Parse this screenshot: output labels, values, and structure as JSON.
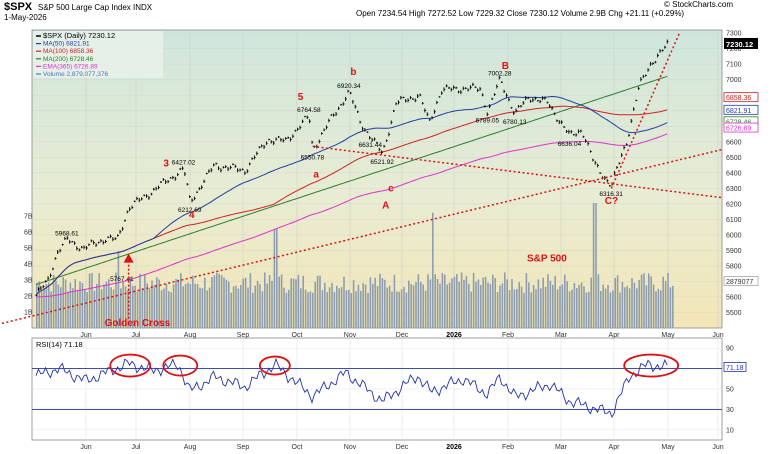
{
  "header": {
    "symbol": "$SPX",
    "name": "S&P 500 Large Cap Index INDX",
    "date": "1-May-2026",
    "ohlc": "Open 7234.54  High 7272.52  Low 7229.32  Close 7230.12  Volume 2.9B  Chg +21.11 (+0.29%)",
    "brand": "© StockCharts.com"
  },
  "legend": [
    {
      "text": "$SPX (Daily) 7230.12",
      "color": "#000000"
    },
    {
      "text": "MA(50) 6821.91",
      "color": "#1f3f9f"
    },
    {
      "text": "MA(100) 6858.36",
      "color": "#cc2222"
    },
    {
      "text": "MA(200) 6728.46",
      "color": "#2e7d2e"
    },
    {
      "text": "EMA(365) 6726.89",
      "color": "#dd33cc"
    },
    {
      "text": "Volume 2,879,077,376",
      "color": "#4477bb"
    }
  ],
  "rsi_label": "RSI(14) 71.18",
  "colors": {
    "up": "#000000",
    "ma50": "#1f3f9f",
    "ma100": "#cc2222",
    "ma200": "#2e7d2e",
    "ema365": "#dd33cc",
    "volume": "#8f9eae",
    "annotation": "#dd1111",
    "rsi": "#2233aa"
  },
  "chart_data": [
    {
      "type": "line",
      "x_ticks": [
        "Jun",
        "Jul",
        "Aug",
        "Sep",
        "Oct",
        "Nov",
        "Dec",
        "2026",
        "Feb",
        "Mar",
        "Apr",
        "May",
        "Jun"
      ],
      "y_ticks": [
        5500,
        5600,
        5700,
        5800,
        5900,
        6000,
        6100,
        6200,
        6300,
        6400,
        6500,
        6600,
        6700,
        6800,
        6900,
        7000,
        7100,
        7200,
        7300
      ],
      "ylim": [
        5400,
        7320
      ],
      "price_anchors": [
        {
          "x": "2025-05-01",
          "y": 5610
        },
        {
          "x": "2025-05-08",
          "y": 5700
        },
        {
          "x": "2025-05-14",
          "y": 5890
        },
        {
          "x": "2025-05-20",
          "y": 5968.61
        },
        {
          "x": "2025-05-30",
          "y": 5911
        },
        {
          "x": "2025-06-05",
          "y": 5939
        },
        {
          "x": "2025-06-13",
          "y": 5977
        },
        {
          "x": "2025-06-20",
          "y": 5967
        },
        {
          "x": "2025-06-27",
          "y": 6173
        },
        {
          "x": "2025-07-10",
          "y": 6280
        },
        {
          "x": "2025-07-28",
          "y": 6427.02
        },
        {
          "x": "2025-08-01",
          "y": 6212.69
        },
        {
          "x": "2025-08-15",
          "y": 6449
        },
        {
          "x": "2025-09-02",
          "y": 6415
        },
        {
          "x": "2025-09-15",
          "y": 6615
        },
        {
          "x": "2025-09-25",
          "y": 6604
        },
        {
          "x": "2025-10-08",
          "y": 6764.58
        },
        {
          "x": "2025-10-10",
          "y": 6550.78
        },
        {
          "x": "2025-10-20",
          "y": 6735
        },
        {
          "x": "2025-10-29",
          "y": 6890
        },
        {
          "x": "2025-10-31",
          "y": 6920.34
        },
        {
          "x": "2025-11-07",
          "y": 6728
        },
        {
          "x": "2025-11-13",
          "y": 6631.44
        },
        {
          "x": "2025-11-20",
          "y": 6521.92
        },
        {
          "x": "2025-11-28",
          "y": 6849
        },
        {
          "x": "2025-12-11",
          "y": 6901
        },
        {
          "x": "2025-12-17",
          "y": 6721
        },
        {
          "x": "2025-12-24",
          "y": 6932
        },
        {
          "x": "2026-01-06",
          "y": 6944
        },
        {
          "x": "2026-01-16",
          "y": 6940
        },
        {
          "x": "2026-01-20",
          "y": 6789.05
        },
        {
          "x": "2026-01-27",
          "y": 7002.28
        },
        {
          "x": "2026-02-05",
          "y": 6780.13
        },
        {
          "x": "2026-02-13",
          "y": 6890
        },
        {
          "x": "2026-02-24",
          "y": 6850
        },
        {
          "x": "2026-03-06",
          "y": 6636.04
        },
        {
          "x": "2026-03-13",
          "y": 6680
        },
        {
          "x": "2026-03-20",
          "y": 6460
        },
        {
          "x": "2026-03-30",
          "y": 6316.31
        },
        {
          "x": "2026-04-08",
          "y": 6600
        },
        {
          "x": "2026-04-15",
          "y": 6950
        },
        {
          "x": "2026-04-22",
          "y": 7110
        },
        {
          "x": "2026-04-28",
          "y": 7180
        },
        {
          "x": "2026-05-01",
          "y": 7230.12
        }
      ],
      "price_labels": [
        {
          "date": "2025-05-20",
          "value": "5968.61"
        },
        {
          "date": "2025-06-23",
          "value": "5767.41"
        },
        {
          "date": "2025-07-28",
          "value": "6427.02"
        },
        {
          "date": "2025-08-01",
          "value": "6212.69"
        },
        {
          "date": "2025-10-08",
          "value": "6764.58"
        },
        {
          "date": "2025-10-10",
          "value": "6550.78"
        },
        {
          "date": "2025-10-31",
          "value": "6920.34"
        },
        {
          "date": "2025-11-13",
          "value": "6631.44"
        },
        {
          "date": "2025-11-20",
          "value": "6521.92"
        },
        {
          "date": "2026-01-20",
          "value": "6789.05"
        },
        {
          "date": "2026-01-27",
          "value": "7002.28"
        },
        {
          "date": "2026-02-05",
          "value": "6780.13"
        },
        {
          "date": "2026-03-06",
          "value": "6636.04"
        },
        {
          "date": "2026-03-30",
          "value": "6316.31"
        }
      ],
      "wave_labels": [
        {
          "text": "3",
          "date": "2025-07-18",
          "y": 6440
        },
        {
          "text": "4",
          "date": "2025-08-02",
          "y": 6110
        },
        {
          "text": "5",
          "date": "2025-10-03",
          "y": 6870
        },
        {
          "text": "a",
          "date": "2025-10-12",
          "y": 6370
        },
        {
          "text": "b",
          "date": "2025-11-03",
          "y": 7030
        },
        {
          "text": "c",
          "date": "2025-11-25",
          "y": 6280
        },
        {
          "text": "A",
          "date": "2025-11-22",
          "y": 6170
        },
        {
          "text": "B",
          "date": "2026-01-30",
          "y": 7070
        },
        {
          "text": "C?",
          "date": "2026-03-30",
          "y": 6200
        }
      ],
      "annotations": [
        "Golden Cross",
        "S&P 500"
      ],
      "price_box": "7230.12",
      "ma_boxes": [
        {
          "value": "6858.36",
          "color": "#cc2222",
          "y": 6858.36
        },
        {
          "value": "6821.91",
          "color": "#1f3f9f",
          "y": 6821.91
        },
        {
          "value": "6728.46",
          "color": "#2e7d2e",
          "y": 6728.46
        },
        {
          "value": "6726.89",
          "color": "#dd33cc",
          "y": 6726.89
        }
      ],
      "volume_ticks": [
        "7B",
        "6B",
        "5B",
        "4B",
        "3B",
        "2B",
        "1B"
      ],
      "volume_box": "2879077",
      "volume_spikes": [
        {
          "date": "2025-06-20",
          "value": 4.8
        },
        {
          "date": "2025-09-19",
          "value": 6.2
        },
        {
          "date": "2025-12-19",
          "value": 7.2
        },
        {
          "date": "2026-03-20",
          "value": 7.8
        },
        {
          "date": "2026-04-28",
          "value": 3.2
        }
      ],
      "volume_base": 2.9
    },
    {
      "type": "line",
      "series_name": "RSI(14)",
      "ylim": [
        0,
        100
      ],
      "y_ticks": [
        10,
        30,
        50,
        70,
        90
      ],
      "last": "71.18",
      "anchors": [
        {
          "x": "2025-05-01",
          "y": 63
        },
        {
          "x": "2025-05-15",
          "y": 70
        },
        {
          "x": "2025-06-01",
          "y": 58
        },
        {
          "x": "2025-06-27",
          "y": 75
        },
        {
          "x": "2025-07-10",
          "y": 68
        },
        {
          "x": "2025-07-25",
          "y": 74
        },
        {
          "x": "2025-08-01",
          "y": 48
        },
        {
          "x": "2025-08-15",
          "y": 62
        },
        {
          "x": "2025-09-02",
          "y": 52
        },
        {
          "x": "2025-09-19",
          "y": 74
        },
        {
          "x": "2025-10-10",
          "y": 43
        },
        {
          "x": "2025-10-29",
          "y": 66
        },
        {
          "x": "2025-11-20",
          "y": 38
        },
        {
          "x": "2025-12-10",
          "y": 63
        },
        {
          "x": "2025-12-18",
          "y": 47
        },
        {
          "x": "2026-01-06",
          "y": 60
        },
        {
          "x": "2026-01-20",
          "y": 45
        },
        {
          "x": "2026-01-27",
          "y": 62
        },
        {
          "x": "2026-02-05",
          "y": 42
        },
        {
          "x": "2026-02-25",
          "y": 55
        },
        {
          "x": "2026-03-06",
          "y": 38
        },
        {
          "x": "2026-03-30",
          "y": 26
        },
        {
          "x": "2026-04-10",
          "y": 63
        },
        {
          "x": "2026-04-20",
          "y": 74
        },
        {
          "x": "2026-05-01",
          "y": 71.18
        }
      ]
    }
  ]
}
